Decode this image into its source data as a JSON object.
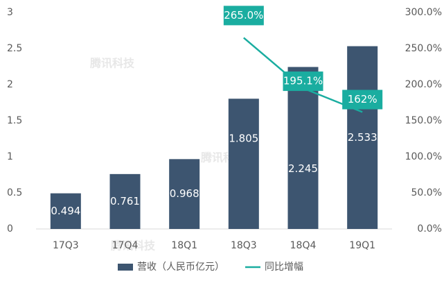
{
  "chart_data": {
    "type": "bar",
    "watermark": "腾讯科技",
    "categories": [
      "17Q3",
      "17Q4",
      "18Q1",
      "18Q3",
      "18Q4",
      "19Q1"
    ],
    "series": [
      {
        "name": "营收（人民币亿元）",
        "type": "bar",
        "color": "#3d5570",
        "values": [
          0.494,
          0.761,
          0.968,
          1.805,
          2.245,
          2.533
        ]
      },
      {
        "name": "同比增幅",
        "type": "line",
        "axis": "y2",
        "color": "#1aada0",
        "values": [
          null,
          null,
          null,
          265.0,
          195.1,
          162
        ],
        "value_labels": [
          null,
          null,
          null,
          "265.0%",
          "195.1%",
          "162%"
        ]
      }
    ],
    "ylim": [
      0,
      3
    ],
    "yticks": [
      0,
      0.5,
      1,
      1.5,
      2,
      2.5,
      3
    ],
    "y2lim": [
      0,
      300
    ],
    "y2ticks": [
      {
        "value": 0,
        "label": "0.0%"
      },
      {
        "value": 50,
        "label": "50.0%"
      },
      {
        "value": 100,
        "label": "100.0%"
      },
      {
        "value": 150,
        "label": "150.0%"
      },
      {
        "value": 200,
        "label": "200.0%"
      },
      {
        "value": 250,
        "label": "250.0%"
      },
      {
        "value": 300,
        "label": "300.0%"
      }
    ],
    "legend": "bottom"
  }
}
